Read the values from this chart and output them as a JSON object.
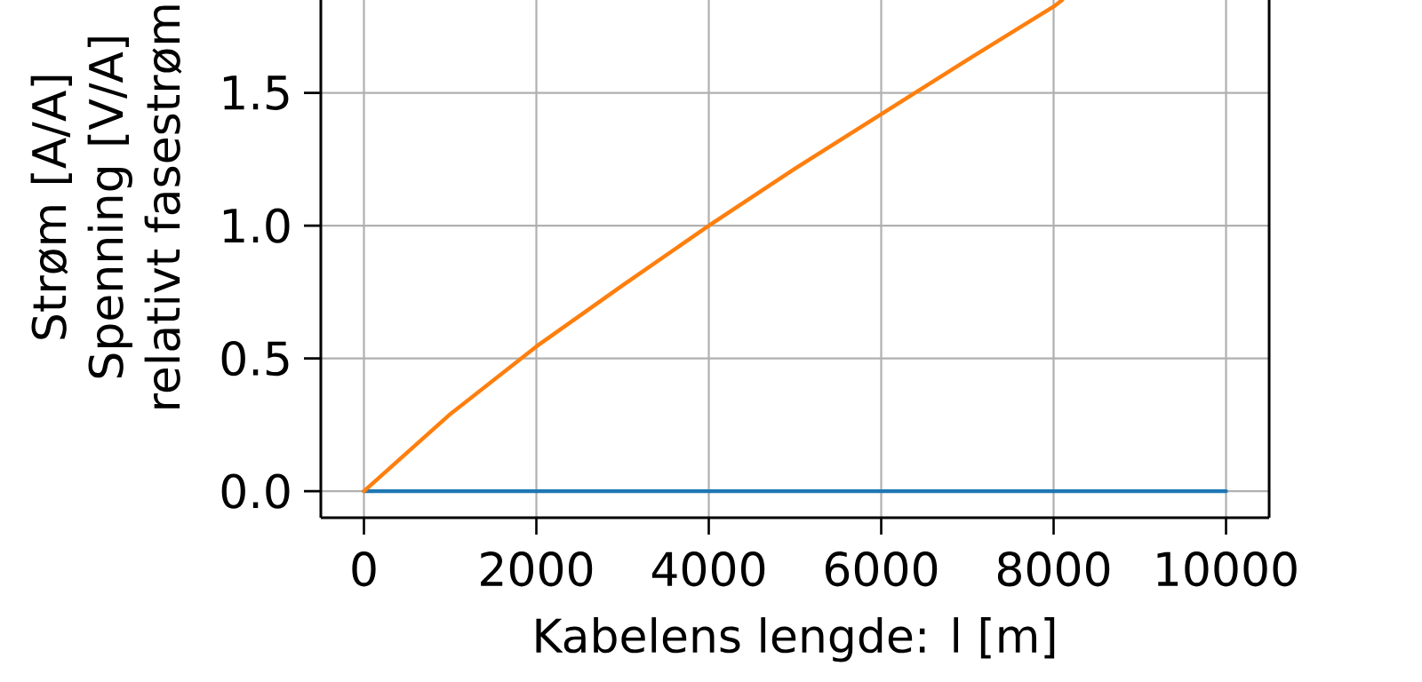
{
  "chart_data": {
    "type": "line",
    "xlabel": "Kabelens lengde: l [m]",
    "ylabel": "Strøm [A/A] Spenning [V/A] relativt fasestrøm",
    "xlim": [
      -500,
      10500
    ],
    "ylim": [
      -0.1,
      1.85
    ],
    "xticks": [
      0,
      2000,
      4000,
      6000,
      8000,
      10000
    ],
    "yticks": [
      {
        "value": 0,
        "label": "0.0"
      },
      0.5,
      {
        "value": 1,
        "label": "1.0"
      },
      1.5
    ],
    "grid": true,
    "series": [
      {
        "color": "#1f77b4",
        "x": [
          0,
          1000,
          2000,
          3000,
          4000,
          5000,
          6000,
          7000,
          8000,
          9000,
          10000
        ],
        "values": [
          0,
          0,
          0,
          0,
          0,
          0,
          0,
          0,
          0,
          0,
          0
        ]
      },
      {
        "color": "#ff7f0e",
        "x": [
          0,
          1000,
          2000,
          3000,
          4000,
          5000,
          6000,
          7000,
          8000,
          8100
        ],
        "values": [
          0,
          0.29,
          0.545,
          0.775,
          1.0,
          1.215,
          1.42,
          1.625,
          1.825,
          1.85
        ]
      }
    ]
  }
}
